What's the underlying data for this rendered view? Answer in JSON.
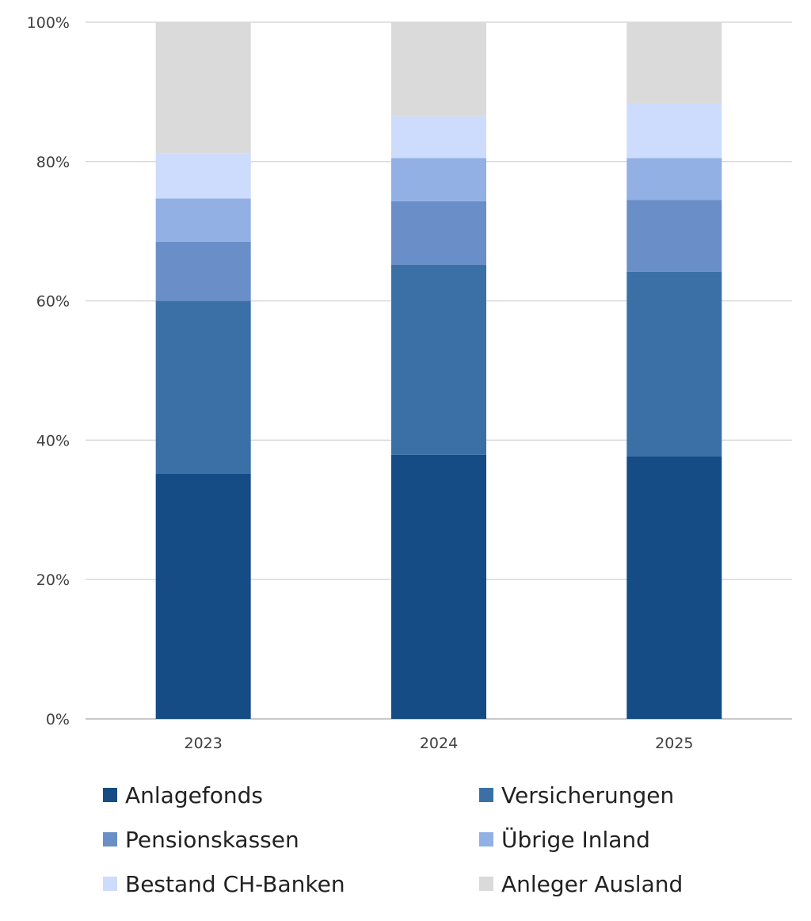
{
  "chart_data": {
    "type": "bar",
    "stacked": true,
    "normalized": true,
    "categories": [
      "2023",
      "2024",
      "2025"
    ],
    "series": [
      {
        "name": "Anlagefonds",
        "color": "#154c85",
        "values": [
          35.2,
          37.9,
          37.7
        ]
      },
      {
        "name": "Versicherungen",
        "color": "#3b70a6",
        "values": [
          24.8,
          27.3,
          26.5
        ]
      },
      {
        "name": "Pensionskassen",
        "color": "#6a8ec7",
        "values": [
          8.5,
          9.1,
          10.3
        ]
      },
      {
        "name": "Übrige Inland",
        "color": "#92b0e4",
        "values": [
          6.2,
          6.2,
          6.0
        ]
      },
      {
        "name": "Bestand CH-Banken",
        "color": "#cddcfd",
        "values": [
          6.5,
          6.0,
          7.9
        ]
      },
      {
        "name": "Anleger Ausland",
        "color": "#dadada",
        "values": [
          18.8,
          13.5,
          11.6
        ]
      }
    ],
    "yticks": [
      "0%",
      "20%",
      "40%",
      "60%",
      "80%",
      "100%"
    ],
    "ylim": [
      0,
      100
    ],
    "grid": true,
    "legend_position": "bottom"
  }
}
